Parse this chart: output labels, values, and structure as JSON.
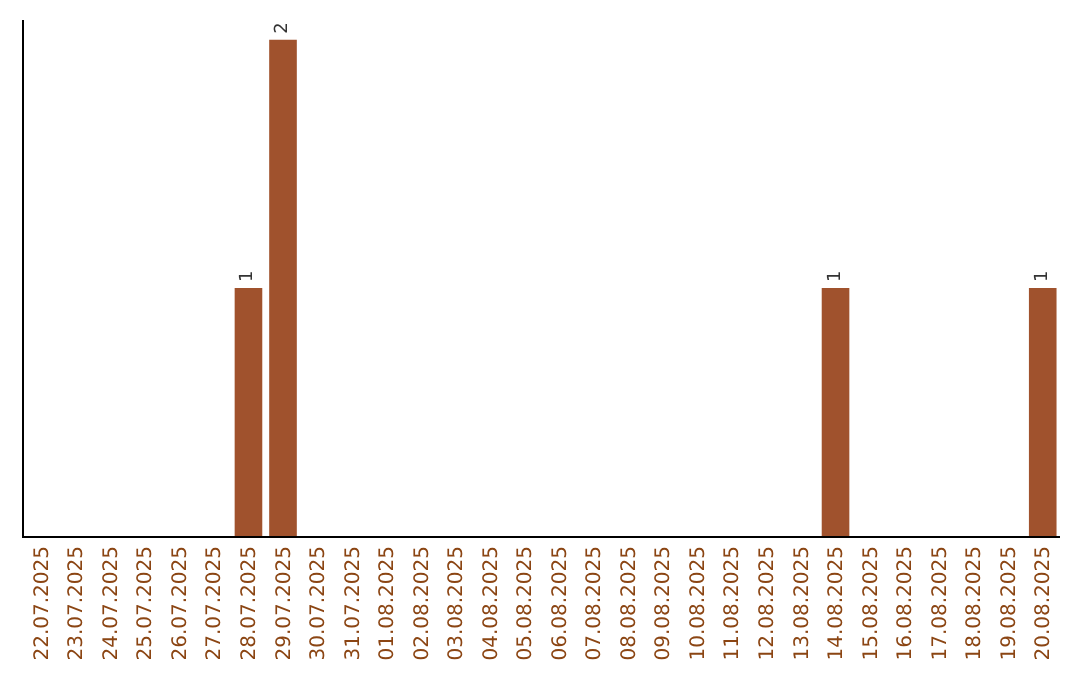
{
  "chart_data": {
    "type": "bar",
    "categories": [
      "22.07.2025",
      "23.07.2025",
      "24.07.2025",
      "25.07.2025",
      "26.07.2025",
      "27.07.2025",
      "28.07.2025",
      "29.07.2025",
      "30.07.2025",
      "31.07.2025",
      "01.08.2025",
      "02.08.2025",
      "03.08.2025",
      "04.08.2025",
      "05.08.2025",
      "06.08.2025",
      "07.08.2025",
      "08.08.2025",
      "09.08.2025",
      "10.08.2025",
      "11.08.2025",
      "12.08.2025",
      "13.08.2025",
      "14.08.2025",
      "15.08.2025",
      "16.08.2025",
      "17.08.2025",
      "18.08.2025",
      "19.08.2025",
      "20.08.2025"
    ],
    "values": [
      0,
      0,
      0,
      0,
      0,
      0,
      1,
      2,
      0,
      0,
      0,
      0,
      0,
      0,
      0,
      0,
      0,
      0,
      0,
      0,
      0,
      0,
      0,
      1,
      0,
      0,
      0,
      0,
      0,
      1
    ],
    "value_labels": [
      null,
      null,
      null,
      null,
      null,
      null,
      "1",
      "2",
      null,
      null,
      null,
      null,
      null,
      null,
      null,
      null,
      null,
      null,
      null,
      null,
      null,
      null,
      null,
      "1",
      null,
      null,
      null,
      null,
      null,
      "1"
    ],
    "color": "#a0522d",
    "tick_labels": "x"
  }
}
